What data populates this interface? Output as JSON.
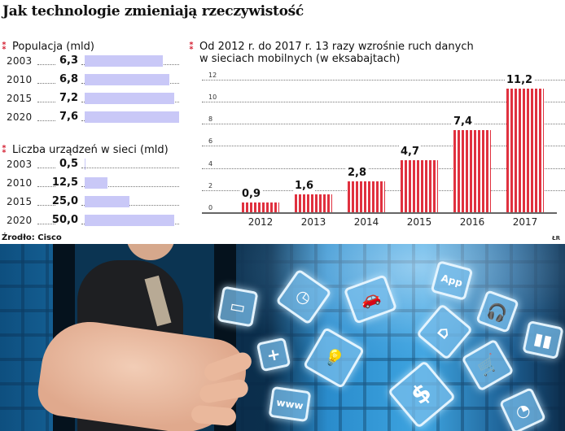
{
  "title": "Jak technologie zmieniają rzeczywistość",
  "population": {
    "heading": "Populacja (mld)",
    "rows": [
      {
        "year": "2003",
        "value": "6,3"
      },
      {
        "year": "2010",
        "value": "6,8"
      },
      {
        "year": "2015",
        "value": "7,2"
      },
      {
        "year": "2020",
        "value": "7,6"
      }
    ]
  },
  "devices": {
    "heading": "Liczba urządzeń w sieci (mld)",
    "rows": [
      {
        "year": "2003",
        "value": "0,5"
      },
      {
        "year": "2010",
        "value": "12,5"
      },
      {
        "year": "2015",
        "value": "25,0"
      },
      {
        "year": "2020",
        "value": "50,0"
      }
    ]
  },
  "traffic": {
    "heading_line1": "Od 2012 r. do 2017 r. 13 razy wzrośnie ruch danych",
    "heading_line2": "w sieciach mobilnych (w eksabajtach)",
    "yticks": [
      "12",
      "10",
      "8",
      "6",
      "4",
      "2",
      "0"
    ],
    "bars": [
      {
        "year": "2012",
        "value": "0,9"
      },
      {
        "year": "2013",
        "value": "1,6"
      },
      {
        "year": "2014",
        "value": "2,8"
      },
      {
        "year": "2015",
        "value": "4,7"
      },
      {
        "year": "2016",
        "value": "7,4"
      },
      {
        "year": "2017",
        "value": "11,2"
      }
    ]
  },
  "source": "Źrodło: Cisco",
  "credit": "ŁR",
  "photo": {
    "icons": [
      "monitor-icon",
      "plus-icon",
      "www-icon",
      "clock-icon",
      "car-icon",
      "lightbulb-icon",
      "app-icon",
      "house-icon",
      "dollar-icon",
      "headphones-icon",
      "cart-icon",
      "bar-chart-icon",
      "watch-icon"
    ],
    "icon_labels": {
      "www": "www",
      "app": "App",
      "dollar": "$",
      "plus": "+"
    }
  },
  "colors": {
    "bullet": "#d6283a",
    "hbar": "#c9c8f7",
    "vbar": "#e0313f"
  },
  "chart_data": [
    {
      "type": "bar",
      "orientation": "horizontal",
      "title": "Populacja (mld)",
      "categories": [
        "2003",
        "2010",
        "2015",
        "2020"
      ],
      "values": [
        6.3,
        6.8,
        7.2,
        7.6
      ],
      "ylabel": "mld"
    },
    {
      "type": "bar",
      "orientation": "horizontal",
      "title": "Liczba urządzeń w sieci (mld)",
      "categories": [
        "2003",
        "2010",
        "2015",
        "2020"
      ],
      "values": [
        0.5,
        12.5,
        25.0,
        50.0
      ],
      "ylabel": "mld"
    },
    {
      "type": "bar",
      "title": "Od 2012 r. do 2017 r. 13 razy wzrośnie ruch danych w sieciach mobilnych (w eksabajtach)",
      "categories": [
        "2012",
        "2013",
        "2014",
        "2015",
        "2016",
        "2017"
      ],
      "values": [
        0.9,
        1.6,
        2.8,
        4.7,
        7.4,
        11.2
      ],
      "xlabel": "",
      "ylabel": "eksabajty",
      "ylim": [
        0,
        12
      ],
      "yticks": [
        0,
        2,
        4,
        6,
        8,
        10,
        12
      ],
      "grid": true
    }
  ]
}
